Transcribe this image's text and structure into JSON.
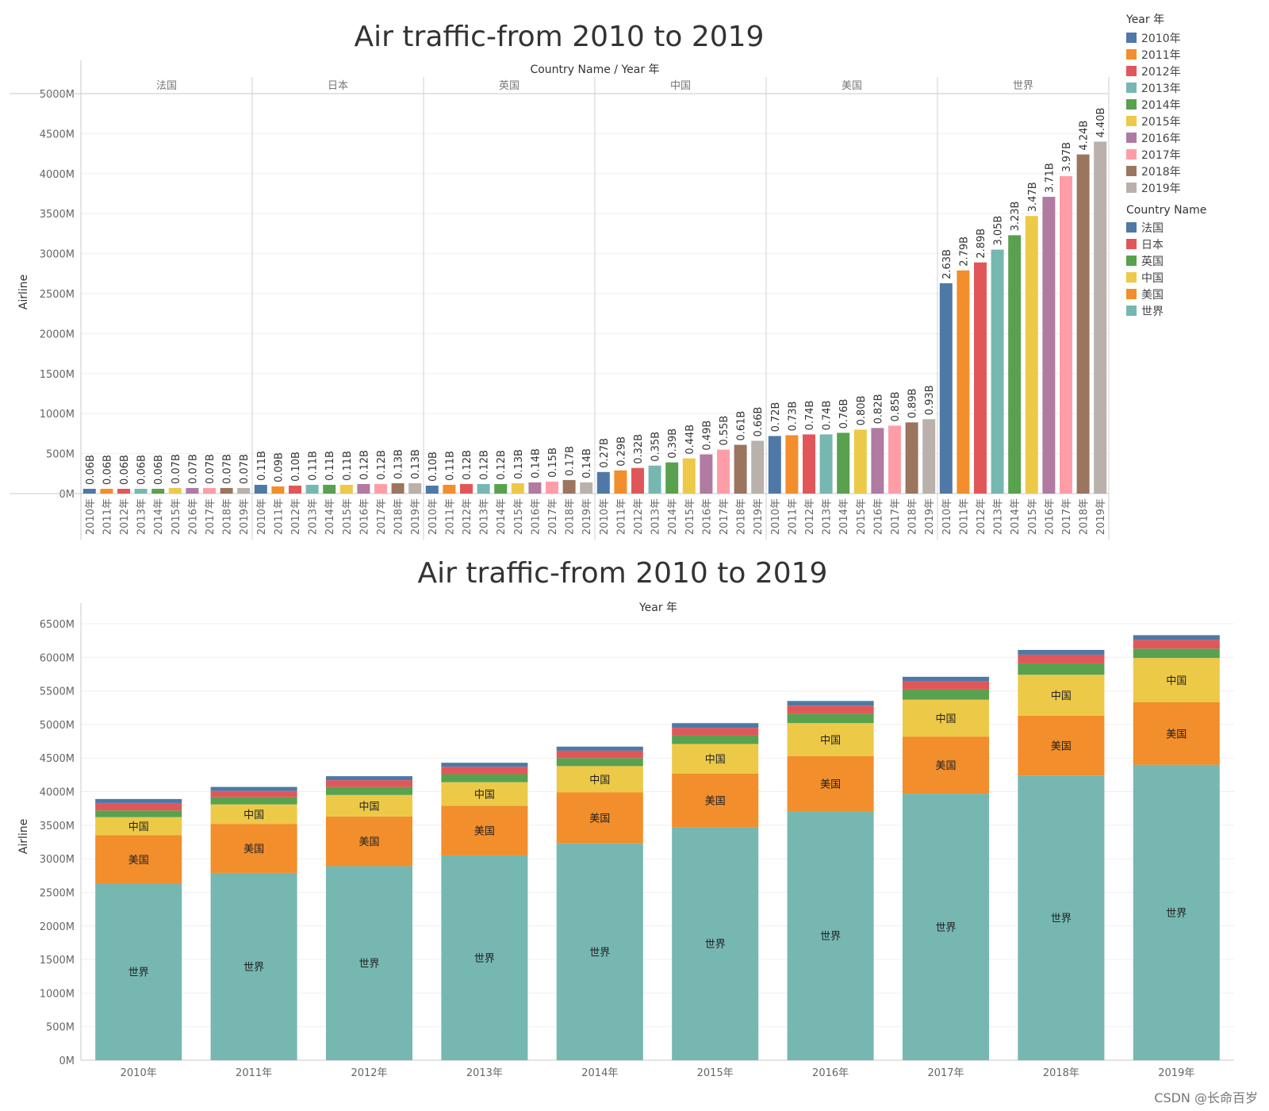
{
  "chart_data": [
    {
      "type": "bar",
      "title": "Air traffic-from 2010 to 2019",
      "header_label": "Country Name / Year 年",
      "ylabel": "Airline",
      "ylim": [
        0,
        5000
      ],
      "y_ticks": [
        "0M",
        "500M",
        "1000M",
        "1500M",
        "2000M",
        "2500M",
        "3000M",
        "3500M",
        "4000M",
        "4500M",
        "5000M"
      ],
      "years": [
        "2010年",
        "2011年",
        "2012年",
        "2013年",
        "2014年",
        "2015年",
        "2016年",
        "2017年",
        "2018年",
        "2019年"
      ],
      "panels": [
        {
          "country": "法国",
          "values": [
            60,
            60,
            60,
            60,
            60,
            70,
            70,
            70,
            70,
            70
          ],
          "labels": [
            "0.06B",
            "0.06B",
            "0.06B",
            "0.06B",
            "0.06B",
            "0.07B",
            "0.07B",
            "0.07B",
            "0.07B",
            "0.07B"
          ]
        },
        {
          "country": "日本",
          "values": [
            110,
            90,
            100,
            110,
            110,
            110,
            120,
            120,
            130,
            130
          ],
          "labels": [
            "0.11B",
            "0.09B",
            "0.10B",
            "0.11B",
            "0.11B",
            "0.11B",
            "0.12B",
            "0.12B",
            "0.13B",
            "0.13B"
          ]
        },
        {
          "country": "英国",
          "values": [
            100,
            110,
            120,
            120,
            120,
            130,
            140,
            150,
            170,
            140
          ],
          "labels": [
            "0.10B",
            "0.11B",
            "0.12B",
            "0.12B",
            "0.12B",
            "0.13B",
            "0.14B",
            "0.15B",
            "0.17B",
            "0.14B"
          ]
        },
        {
          "country": "中国",
          "values": [
            270,
            290,
            320,
            350,
            390,
            440,
            490,
            550,
            610,
            660
          ],
          "labels": [
            "0.27B",
            "0.29B",
            "0.32B",
            "0.35B",
            "0.39B",
            "0.44B",
            "0.49B",
            "0.55B",
            "0.61B",
            "0.66B"
          ]
        },
        {
          "country": "美国",
          "values": [
            720,
            730,
            740,
            740,
            760,
            800,
            820,
            850,
            890,
            930
          ],
          "labels": [
            "0.72B",
            "0.73B",
            "0.74B",
            "0.74B",
            "0.76B",
            "0.80B",
            "0.82B",
            "0.85B",
            "0.89B",
            "0.93B"
          ]
        },
        {
          "country": "世界",
          "values": [
            2630,
            2790,
            2890,
            3050,
            3230,
            3470,
            3710,
            3970,
            4240,
            4400
          ],
          "labels": [
            "2.63B",
            "2.79B",
            "2.89B",
            "3.05B",
            "3.23B",
            "3.47B",
            "3.71B",
            "3.97B",
            "4.24B",
            "4.40B"
          ]
        }
      ]
    },
    {
      "type": "bar",
      "stacked": true,
      "title": "Air traffic-from 2010 to 2019",
      "header_label": "Year 年",
      "ylabel": "Airline",
      "ylim": [
        0,
        6500
      ],
      "y_ticks": [
        "0M",
        "500M",
        "1000M",
        "1500M",
        "2000M",
        "2500M",
        "3000M",
        "3500M",
        "4000M",
        "4500M",
        "5000M",
        "5500M",
        "6000M",
        "6500M"
      ],
      "categories": [
        "2010年",
        "2011年",
        "2012年",
        "2013年",
        "2014年",
        "2015年",
        "2016年",
        "2017年",
        "2018年",
        "2019年"
      ],
      "series": [
        {
          "name": "世界",
          "values": [
            2630,
            2790,
            2890,
            3050,
            3230,
            3470,
            3710,
            3970,
            4240,
            4400
          ]
        },
        {
          "name": "美国",
          "values": [
            720,
            730,
            740,
            740,
            760,
            800,
            820,
            850,
            890,
            930
          ]
        },
        {
          "name": "中国",
          "values": [
            270,
            290,
            320,
            350,
            390,
            440,
            490,
            550,
            610,
            660
          ]
        },
        {
          "name": "英国",
          "values": [
            100,
            110,
            120,
            120,
            120,
            130,
            140,
            150,
            170,
            140
          ]
        },
        {
          "name": "日本",
          "values": [
            110,
            90,
            100,
            110,
            110,
            110,
            120,
            120,
            130,
            130
          ]
        },
        {
          "name": "法国",
          "values": [
            60,
            60,
            60,
            60,
            60,
            70,
            70,
            70,
            70,
            70
          ]
        }
      ],
      "labeled_series": [
        "世界",
        "美国",
        "中国"
      ]
    }
  ],
  "legend": {
    "year_title": "Year 年",
    "years": [
      {
        "label": "2010年",
        "color": "#4e79a7"
      },
      {
        "label": "2011年",
        "color": "#f28e2b"
      },
      {
        "label": "2012年",
        "color": "#e15759"
      },
      {
        "label": "2013年",
        "color": "#76b7b2"
      },
      {
        "label": "2014年",
        "color": "#59a14f"
      },
      {
        "label": "2015年",
        "color": "#edc948"
      },
      {
        "label": "2016年",
        "color": "#b07aa1"
      },
      {
        "label": "2017年",
        "color": "#ff9da7"
      },
      {
        "label": "2018年",
        "color": "#9c755f"
      },
      {
        "label": "2019年",
        "color": "#bab0ac"
      }
    ],
    "country_title": "Country Name",
    "countries": [
      {
        "label": "法国",
        "color": "#4e79a7"
      },
      {
        "label": "日本",
        "color": "#e15759"
      },
      {
        "label": "英国",
        "color": "#59a14f"
      },
      {
        "label": "中国",
        "color": "#edc948"
      },
      {
        "label": "美国",
        "color": "#f28e2b"
      },
      {
        "label": "世界",
        "color": "#76b7b2"
      }
    ]
  },
  "watermark": "CSDN @长命百岁"
}
